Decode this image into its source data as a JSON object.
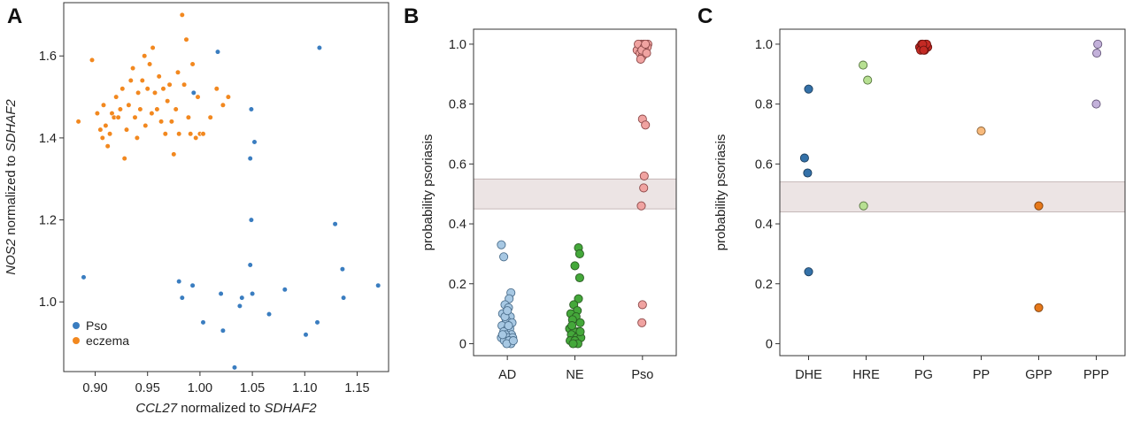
{
  "panels": {
    "A": {
      "letter": "A"
    },
    "B": {
      "letter": "B"
    },
    "C": {
      "letter": "C"
    }
  },
  "chart_data": [
    {
      "id": "A",
      "type": "scatter",
      "xlabel_parts": [
        {
          "text": "CCL27",
          "italic": true
        },
        {
          "text": " normalized to ",
          "italic": false
        },
        {
          "text": "SDHAF2",
          "italic": true
        }
      ],
      "ylabel_parts": [
        {
          "text": "NOS2",
          "italic": true
        },
        {
          "text": " normalized to ",
          "italic": false
        },
        {
          "text": "SDHAF2",
          "italic": true
        }
      ],
      "xlim": [
        0.87,
        1.18
      ],
      "ylim": [
        0.83,
        1.73
      ],
      "xticks": [
        0.9,
        0.95,
        1.0,
        1.05,
        1.1,
        1.15
      ],
      "xtick_labels": [
        "0.90",
        "0.95",
        "1.00",
        "1.05",
        "1.10",
        "1.15"
      ],
      "yticks": [
        1.0,
        1.2,
        1.4,
        1.6
      ],
      "ytick_labels": [
        "1.0",
        "1.2",
        "1.4",
        "1.6"
      ],
      "legend": {
        "position": "lower-left"
      },
      "series": [
        {
          "name": "Pso",
          "color": "#3a7dc0",
          "points": [
            [
              0.889,
              1.06
            ],
            [
              0.98,
              1.05
            ],
            [
              0.983,
              1.01
            ],
            [
              0.993,
              1.04
            ],
            [
              1.003,
              0.95
            ],
            [
              1.02,
              1.02
            ],
            [
              1.022,
              0.93
            ],
            [
              1.033,
              0.84
            ],
            [
              1.038,
              0.99
            ],
            [
              1.04,
              1.01
            ],
            [
              1.048,
              1.09
            ],
            [
              1.05,
              1.02
            ],
            [
              1.049,
              1.2
            ],
            [
              1.048,
              1.35
            ],
            [
              1.052,
              1.39
            ],
            [
              1.049,
              1.47
            ],
            [
              1.066,
              0.97
            ],
            [
              1.081,
              1.03
            ],
            [
              1.101,
              0.92
            ],
            [
              1.112,
              0.95
            ],
            [
              1.129,
              1.19
            ],
            [
              1.136,
              1.08
            ],
            [
              1.137,
              1.01
            ],
            [
              1.17,
              1.04
            ],
            [
              1.114,
              1.62
            ],
            [
              1.017,
              1.61
            ],
            [
              0.994,
              1.51
            ]
          ]
        },
        {
          "name": "eczema",
          "color": "#f2881f",
          "points": [
            [
              0.884,
              1.44
            ],
            [
              0.897,
              1.59
            ],
            [
              0.902,
              1.46
            ],
            [
              0.905,
              1.42
            ],
            [
              0.907,
              1.4
            ],
            [
              0.908,
              1.48
            ],
            [
              0.91,
              1.43
            ],
            [
              0.912,
              1.38
            ],
            [
              0.914,
              1.41
            ],
            [
              0.916,
              1.46
            ],
            [
              0.918,
              1.45
            ],
            [
              0.92,
              1.5
            ],
            [
              0.922,
              1.45
            ],
            [
              0.924,
              1.47
            ],
            [
              0.926,
              1.52
            ],
            [
              0.928,
              1.35
            ],
            [
              0.93,
              1.42
            ],
            [
              0.932,
              1.48
            ],
            [
              0.934,
              1.54
            ],
            [
              0.936,
              1.57
            ],
            [
              0.938,
              1.45
            ],
            [
              0.94,
              1.4
            ],
            [
              0.941,
              1.51
            ],
            [
              0.943,
              1.47
            ],
            [
              0.945,
              1.54
            ],
            [
              0.947,
              1.6
            ],
            [
              0.948,
              1.43
            ],
            [
              0.95,
              1.52
            ],
            [
              0.952,
              1.58
            ],
            [
              0.954,
              1.46
            ],
            [
              0.955,
              1.62
            ],
            [
              0.957,
              1.51
            ],
            [
              0.959,
              1.47
            ],
            [
              0.961,
              1.55
            ],
            [
              0.963,
              1.44
            ],
            [
              0.965,
              1.52
            ],
            [
              0.967,
              1.41
            ],
            [
              0.969,
              1.49
            ],
            [
              0.971,
              1.53
            ],
            [
              0.973,
              1.44
            ],
            [
              0.975,
              1.36
            ],
            [
              0.977,
              1.47
            ],
            [
              0.979,
              1.56
            ],
            [
              0.98,
              1.41
            ],
            [
              0.983,
              1.7
            ],
            [
              0.985,
              1.53
            ],
            [
              0.987,
              1.64
            ],
            [
              0.989,
              1.45
            ],
            [
              0.991,
              1.41
            ],
            [
              0.993,
              1.58
            ],
            [
              0.996,
              1.4
            ],
            [
              0.998,
              1.5
            ],
            [
              1.0,
              1.41
            ],
            [
              1.003,
              1.41
            ],
            [
              1.01,
              1.45
            ],
            [
              1.016,
              1.52
            ],
            [
              1.022,
              1.48
            ],
            [
              1.027,
              1.5
            ]
          ]
        }
      ]
    },
    {
      "id": "B",
      "type": "scatter",
      "ylabel": "probability psoriasis",
      "ylim": [
        -0.04,
        1.05
      ],
      "yticks": [
        0.0,
        0.2,
        0.4,
        0.6,
        0.8,
        1.0
      ],
      "ytick_labels": [
        "0",
        "0.2",
        "0.4",
        "0.6",
        "0.8",
        "1.0"
      ],
      "categories": [
        "AD",
        "NE",
        "Pso"
      ],
      "band": [
        0.45,
        0.55
      ],
      "groups": [
        {
          "category": "AD",
          "color": "#a7c8e3",
          "stroke": "#4b6e8c",
          "points": [
            [
              -0.1,
              0.33
            ],
            [
              -0.06,
              0.29
            ],
            [
              0.06,
              0.17
            ],
            [
              0.03,
              0.15
            ],
            [
              -0.04,
              0.13
            ],
            [
              0.02,
              0.12
            ],
            [
              -0.08,
              0.1
            ],
            [
              0.05,
              0.09
            ],
            [
              -0.02,
              0.08
            ],
            [
              0.08,
              0.07
            ],
            [
              -0.09,
              0.06
            ],
            [
              0.0,
              0.05
            ],
            [
              0.04,
              0.05
            ],
            [
              -0.06,
              0.04
            ],
            [
              0.07,
              0.03
            ],
            [
              -0.03,
              0.03
            ],
            [
              0.01,
              0.02
            ],
            [
              -0.1,
              0.02
            ],
            [
              0.09,
              0.02
            ],
            [
              -0.05,
              0.01
            ],
            [
              0.03,
              0.01
            ],
            [
              0.06,
              0.0
            ],
            [
              -0.01,
              0.0
            ],
            [
              0.1,
              0.01
            ],
            [
              -0.08,
              0.03
            ],
            [
              0.02,
              0.06
            ],
            [
              -0.04,
              0.09
            ],
            [
              0.0,
              0.11
            ]
          ]
        },
        {
          "category": "NE",
          "color": "#44a83a",
          "stroke": "#2a5c23",
          "points": [
            [
              0.06,
              0.32
            ],
            [
              0.08,
              0.3
            ],
            [
              0.0,
              0.26
            ],
            [
              0.08,
              0.22
            ],
            [
              0.06,
              0.15
            ],
            [
              -0.02,
              0.13
            ],
            [
              0.04,
              0.11
            ],
            [
              -0.07,
              0.1
            ],
            [
              0.02,
              0.09
            ],
            [
              -0.04,
              0.08
            ],
            [
              0.09,
              0.07
            ],
            [
              -0.09,
              0.05
            ],
            [
              0.05,
              0.04
            ],
            [
              -0.02,
              0.04
            ],
            [
              0.07,
              0.03
            ],
            [
              -0.06,
              0.03
            ],
            [
              0.03,
              0.02
            ],
            [
              -0.08,
              0.01
            ],
            [
              0.1,
              0.02
            ],
            [
              0.0,
              0.01
            ],
            [
              0.05,
              0.0
            ],
            [
              -0.03,
              0.0
            ],
            [
              0.09,
              0.04
            ],
            [
              -0.05,
              0.06
            ]
          ]
        },
        {
          "category": "Pso",
          "color": "#f0a3a1",
          "stroke": "#8c4848",
          "points": [
            [
              -0.06,
              0.99
            ],
            [
              -0.02,
              1.0
            ],
            [
              0.02,
              1.0
            ],
            [
              0.06,
              0.99
            ],
            [
              0.09,
              1.0
            ],
            [
              -0.09,
              0.98
            ],
            [
              -0.04,
              0.97
            ],
            [
              0.0,
              0.96
            ],
            [
              0.04,
              0.98
            ],
            [
              0.08,
              0.99
            ],
            [
              -0.07,
              1.0
            ],
            [
              0.03,
              0.99
            ],
            [
              -0.01,
              0.98
            ],
            [
              0.07,
              0.97
            ],
            [
              -0.03,
              0.95
            ],
            [
              0.05,
              1.0
            ],
            [
              0.0,
              0.75
            ],
            [
              0.05,
              0.73
            ],
            [
              0.03,
              0.56
            ],
            [
              0.02,
              0.52
            ],
            [
              -0.02,
              0.46
            ],
            [
              0.0,
              0.13
            ],
            [
              -0.01,
              0.07
            ]
          ]
        }
      ]
    },
    {
      "id": "C",
      "type": "scatter",
      "ylabel": "probability psoriasis",
      "ylim": [
        -0.04,
        1.05
      ],
      "yticks": [
        0.0,
        0.2,
        0.4,
        0.6,
        0.8,
        1.0
      ],
      "ytick_labels": [
        "0",
        "0.2",
        "0.4",
        "0.6",
        "0.8",
        "1.0"
      ],
      "categories": [
        "DHE",
        "HRE",
        "PG",
        "PP",
        "GPP",
        "PPP"
      ],
      "band": [
        0.44,
        0.54
      ],
      "groups": [
        {
          "category": "DHE",
          "color": "#3471a8",
          "stroke": "#1d3f5e",
          "points": [
            [
              0.0,
              0.85
            ],
            [
              -0.08,
              0.62
            ],
            [
              -0.02,
              0.57
            ],
            [
              0.0,
              0.24
            ]
          ]
        },
        {
          "category": "HRE",
          "color": "#b7e092",
          "stroke": "#56743e",
          "points": [
            [
              -0.06,
              0.93
            ],
            [
              0.03,
              0.88
            ],
            [
              -0.05,
              0.46
            ]
          ]
        },
        {
          "category": "PG",
          "color": "#c42a24",
          "stroke": "#6b1410",
          "points": [
            [
              -0.08,
              0.99
            ],
            [
              -0.04,
              1.0
            ],
            [
              0.0,
              0.99
            ],
            [
              0.04,
              1.0
            ],
            [
              0.08,
              0.99
            ],
            [
              -0.06,
              0.98
            ],
            [
              0.02,
              0.98
            ],
            [
              0.06,
              1.0
            ],
            [
              -0.02,
              1.0
            ],
            [
              0.0,
              0.98
            ]
          ]
        },
        {
          "category": "PP",
          "color": "#f8ba7c",
          "stroke": "#8a6034",
          "points": [
            [
              0.0,
              0.71
            ]
          ]
        },
        {
          "category": "GPP",
          "color": "#e6781a",
          "stroke": "#7a3d0a",
          "points": [
            [
              0.0,
              0.46
            ],
            [
              0.0,
              0.12
            ]
          ]
        },
        {
          "category": "PPP",
          "color": "#c3b1da",
          "stroke": "#65567a",
          "points": [
            [
              0.03,
              1.0
            ],
            [
              0.01,
              0.97
            ],
            [
              0.0,
              0.8
            ]
          ]
        }
      ]
    }
  ]
}
